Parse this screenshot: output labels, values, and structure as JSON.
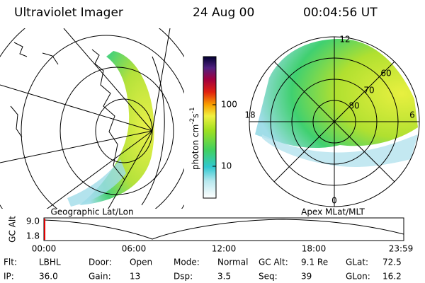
{
  "header": {
    "title": "Ultraviolet Imager",
    "date": "24 Aug 00",
    "time": "00:04:56 UT"
  },
  "left_panel": {
    "label": "Geographic Lat/Lon"
  },
  "right_panel": {
    "label": "Apex MLat/MLT",
    "mlt_labels": [
      "12",
      "18",
      "6",
      "0"
    ],
    "mlat_labels": [
      "60",
      "70",
      "80"
    ]
  },
  "colorbar": {
    "label": {
      "text": "photon cm",
      "exp1": "-2",
      "mid": "s",
      "exp2": "-1"
    },
    "ticks": [
      "100",
      "10"
    ]
  },
  "altitude_plot": {
    "ylabel": "GC Alt",
    "yticks": [
      "9.0",
      "1.8"
    ],
    "xticks": [
      "00:00",
      "06:00",
      "12:00",
      "18:00",
      "23:59"
    ]
  },
  "status": {
    "rows": [
      [
        {
          "label": "Flt:",
          "value": "LBHL"
        },
        {
          "label": "Door:",
          "value": "Open"
        },
        {
          "label": "Mode:",
          "value": "Normal"
        },
        {
          "label": "GC Alt:",
          "value": "9.1 Re"
        },
        {
          "label": "GLat:",
          "value": "72.5"
        }
      ],
      [
        {
          "label": "IP:",
          "value": "36.0"
        },
        {
          "label": "Gain:",
          "value": "13"
        },
        {
          "label": "Dsp:",
          "value": "3.5"
        },
        {
          "label": "Seq:",
          "value": "39"
        },
        {
          "label": "GLon:",
          "value": "16.2"
        }
      ]
    ]
  }
}
